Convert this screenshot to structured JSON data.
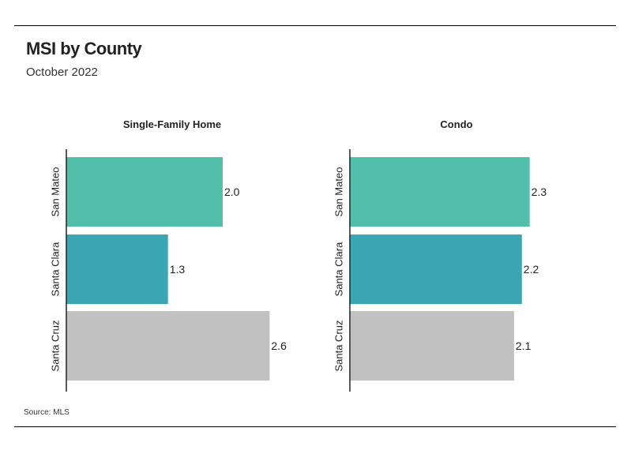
{
  "header": {
    "title": "MSI by County",
    "subtitle": "October 2022"
  },
  "footer": {
    "source": "Source: MLS"
  },
  "colors": {
    "San Mateo": "#52bfab",
    "Santa Clara": "#3aa6b4",
    "Santa Cruz": "#c1c1c1"
  },
  "chart_data": [
    {
      "type": "bar",
      "orientation": "horizontal",
      "title": "Single-Family Home",
      "categories": [
        "San Mateo",
        "Santa Clara",
        "Santa Cruz"
      ],
      "values": [
        2.0,
        1.3,
        2.6
      ],
      "value_labels": [
        "2.0",
        "1.3",
        "2.6"
      ],
      "xlim": [
        0,
        3.0
      ]
    },
    {
      "type": "bar",
      "orientation": "horizontal",
      "title": "Condo",
      "categories": [
        "San Mateo",
        "Santa Clara",
        "Santa Cruz"
      ],
      "values": [
        2.3,
        2.2,
        2.1
      ],
      "value_labels": [
        "2.3",
        "2.2",
        "2.1"
      ],
      "xlim": [
        0,
        3.0
      ]
    }
  ]
}
